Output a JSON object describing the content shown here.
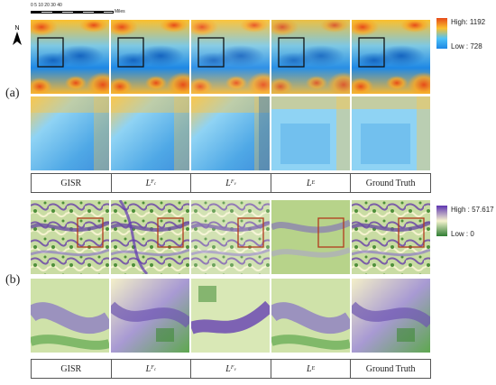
{
  "scalebar": {
    "ticks": "0  5  10    20    30    40",
    "unit": "Miles"
  },
  "north_label": "N",
  "panel_a": {
    "label": "(a)",
    "legend": {
      "high": "High: 1192",
      "low": "Low : 728",
      "colors": [
        "#e64a19",
        "#fbc02d",
        "#4fc3f7",
        "#1e88e5"
      ]
    },
    "captions": [
      "GISR",
      "L_Fc",
      "L_Fv",
      "L_E",
      "Ground Truth"
    ]
  },
  "panel_b": {
    "label": "(b)",
    "legend": {
      "high": "High : 57.617",
      "low": "Low : 0",
      "colors": [
        "#5e35b1",
        "#f5f3cf",
        "#2e7d32"
      ]
    },
    "captions": [
      "GISR",
      "L_Fc",
      "L_Fv",
      "L_E",
      "Ground Truth"
    ]
  }
}
